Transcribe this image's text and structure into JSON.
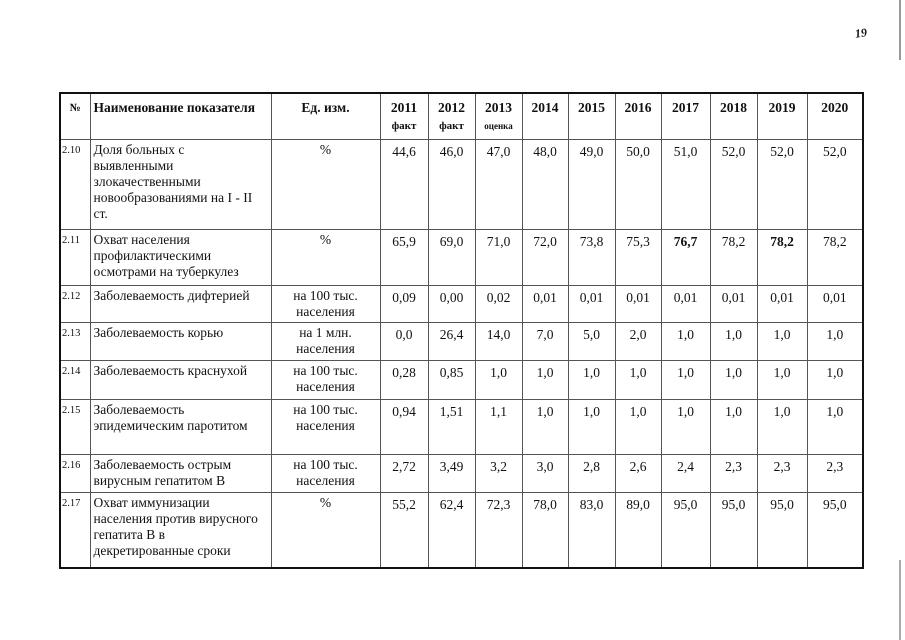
{
  "page_number": "19",
  "table": {
    "headers": {
      "num": "№",
      "name": "Наименование показателя",
      "unit": "Ед. изм.",
      "years": [
        {
          "year": "2011",
          "note": "факт"
        },
        {
          "year": "2012",
          "note": "факт"
        },
        {
          "year": "2013",
          "note": "оценка"
        },
        {
          "year": "2014",
          "note": ""
        },
        {
          "year": "2015",
          "note": ""
        },
        {
          "year": "2016",
          "note": ""
        },
        {
          "year": "2017",
          "note": ""
        },
        {
          "year": "2018",
          "note": ""
        },
        {
          "year": "2019",
          "note": ""
        },
        {
          "year": "2020",
          "note": ""
        }
      ]
    },
    "rows": [
      {
        "num": "2.10",
        "name": "Доля больных с выявленными злокачественными новообразованиями на I - II ст.",
        "unit": "%",
        "values": [
          "44,6",
          "46,0",
          "47,0",
          "48,0",
          "49,0",
          "50,0",
          "51,0",
          "52,0",
          "52,0",
          "52,0"
        ]
      },
      {
        "num": "2.11",
        "name": "Охват населения профилактическими осмотрами на туберкулез",
        "unit": "%",
        "values": [
          "65,9",
          "69,0",
          "71,0",
          "72,0",
          "73,8",
          "75,3",
          "76,7",
          "78,2",
          "78,2",
          "78,2"
        ]
      },
      {
        "num": "2.12",
        "name": "Заболеваемость дифтерией",
        "unit": "на 100 тыс. населения",
        "values": [
          "0,09",
          "0,00",
          "0,02",
          "0,01",
          "0,01",
          "0,01",
          "0,01",
          "0,01",
          "0,01",
          "0,01"
        ]
      },
      {
        "num": "2.13",
        "name": "Заболеваемость корью",
        "unit": "на 1 млн. населения",
        "values": [
          "0,0",
          "26,4",
          "14,0",
          "7,0",
          "5,0",
          "2,0",
          "1,0",
          "1,0",
          "1,0",
          "1,0"
        ]
      },
      {
        "num": "2.14",
        "name": "Заболеваемость краснухой",
        "unit": "на 100 тыс. населения",
        "values": [
          "0,28",
          "0,85",
          "1,0",
          "1,0",
          "1,0",
          "1,0",
          "1,0",
          "1,0",
          "1,0",
          "1,0"
        ]
      },
      {
        "num": "2.15",
        "name": "Заболеваемость эпидемическим паротитом",
        "unit": "на 100 тыс. населения",
        "values": [
          "0,94",
          "1,51",
          "1,1",
          "1,0",
          "1,0",
          "1,0",
          "1,0",
          "1,0",
          "1,0",
          "1,0"
        ]
      },
      {
        "num": "2.16",
        "name": "Заболеваемость острым вирусным гепатитом В",
        "unit": "на 100 тыс. населения",
        "values": [
          "2,72",
          "3,49",
          "3,2",
          "3,0",
          "2,8",
          "2,6",
          "2,4",
          "2,3",
          "2,3",
          "2,3"
        ]
      },
      {
        "num": "2.17",
        "name": "Охват иммунизации населения против вирусного гепатита В в декретированные сроки",
        "unit": "%",
        "values": [
          "55,2",
          "62,4",
          "72,3",
          "78,0",
          "83,0",
          "89,0",
          "95,0",
          "95,0",
          "95,0",
          "95,0"
        ]
      }
    ]
  }
}
